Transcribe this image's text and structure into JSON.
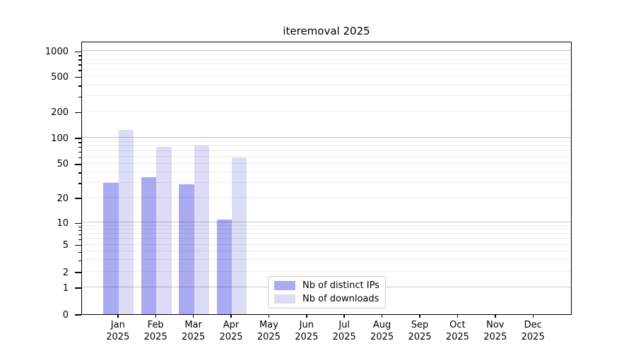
{
  "title": "iteremoval 2025",
  "chart_data": {
    "type": "bar",
    "title": "iteremoval 2025",
    "x_categories": [
      "Jan",
      "Feb",
      "Mar",
      "Apr",
      "May",
      "Jun",
      "Jul",
      "Aug",
      "Sep",
      "Oct",
      "Nov",
      "Dec"
    ],
    "x_year_label": "2025",
    "series": [
      {
        "name": "Nb of distinct IPs",
        "color": "#aaaaf2",
        "values": [
          30,
          35,
          29,
          11,
          0,
          0,
          0,
          0,
          0,
          0,
          0,
          0
        ]
      },
      {
        "name": "Nb of downloads",
        "color": "#dcdcf7",
        "values": [
          123,
          78,
          81,
          59,
          0,
          0,
          0,
          0,
          0,
          0,
          0,
          0
        ]
      }
    ],
    "y_axis": {
      "scale": "symlog",
      "ticks": [
        0,
        1,
        2,
        5,
        10,
        20,
        50,
        100,
        200,
        500,
        1000
      ],
      "range": [
        0,
        1200
      ]
    },
    "legend": {
      "position": "lower-center-left"
    },
    "grid": "horizontal major and minor, drawn above bars",
    "colors": {
      "axis": "#000000",
      "grid_major": "#c8c8c8",
      "grid_minor": "#ededed",
      "background": "#ffffff"
    }
  }
}
